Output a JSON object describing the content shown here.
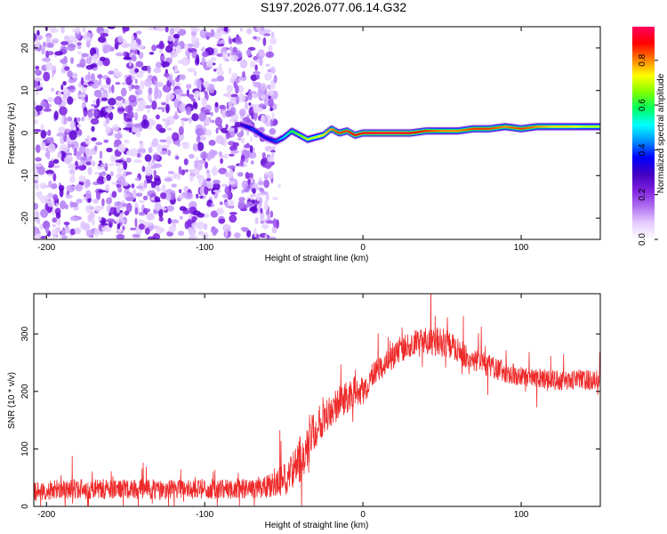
{
  "figure_title": "S197.2026.077.06.14.G32",
  "colors": {
    "snr_line": "#ee2a2a",
    "frame": "#000000",
    "rainbow": [
      "#ffffff",
      "#e6ccff",
      "#b070f0",
      "#8020e0",
      "#4000c0",
      "#0000ff",
      "#0090ff",
      "#00ffff",
      "#00ff60",
      "#80ff00",
      "#ffff00",
      "#ff8000",
      "#ff0000",
      "#ff0060"
    ]
  },
  "chart_data": [
    {
      "type": "heatmap",
      "name": "spectrogram",
      "title": "S197.2026.077.06.14.G32",
      "xlabel": "Height of straight line (km)",
      "ylabel": "Frequency (Hz)",
      "xlim": [
        -208,
        150
      ],
      "ylim": [
        -25,
        25
      ],
      "xticks": [
        -200,
        -100,
        0,
        100
      ],
      "yticks": [
        -20,
        -10,
        0,
        10,
        20
      ],
      "noise_region_x": [
        -208,
        -55
      ],
      "ridge": {
        "description": "narrow high-amplitude ridge tracking the dominant frequency",
        "x": [
          -77,
          -70,
          -62,
          -55,
          -50,
          -45,
          -40,
          -35,
          -30,
          -25,
          -20,
          -15,
          -10,
          -5,
          0,
          10,
          20,
          30,
          40,
          50,
          60,
          70,
          80,
          90,
          100,
          110,
          120,
          130,
          140,
          150
        ],
        "y": [
          2.0,
          1.0,
          -1.0,
          -2.0,
          -1.0,
          0.5,
          -0.5,
          -1.5,
          -1.0,
          -0.5,
          1.0,
          0.0,
          0.5,
          -0.5,
          0.0,
          0.0,
          0.0,
          0.0,
          0.5,
          0.5,
          0.5,
          1.0,
          1.0,
          1.5,
          1.0,
          1.5,
          1.5,
          1.5,
          1.5,
          1.5
        ],
        "amplitude": [
          0.3,
          0.4,
          0.35,
          0.4,
          0.5,
          0.6,
          0.65,
          0.7,
          0.7,
          0.75,
          0.8,
          0.85,
          0.85,
          0.9,
          0.9,
          0.92,
          0.92,
          0.9,
          0.85,
          0.8,
          0.8,
          0.85,
          0.85,
          0.8,
          0.85,
          0.8,
          0.75,
          0.75,
          0.7,
          0.7
        ]
      },
      "colorbar": {
        "label": "Normalized spectral amplitude",
        "range": [
          0.0,
          0.95
        ],
        "ticks": [
          "0.0",
          "0.2",
          "0.4",
          "0.6",
          "0.8"
        ],
        "tick_values": [
          0.0,
          0.2,
          0.4,
          0.6,
          0.8
        ]
      }
    },
    {
      "type": "line",
      "name": "snr",
      "xlabel": "Height of straight line (km)",
      "ylabel": "SNR (10 * v/v)",
      "xlim": [
        -208,
        150
      ],
      "ylim": [
        0,
        370
      ],
      "xticks": [
        -200,
        -100,
        0,
        100
      ],
      "yticks": [
        0,
        100,
        200,
        300
      ],
      "series": [
        {
          "name": "SNR",
          "x": [
            -208,
            -190,
            -170,
            -150,
            -130,
            -110,
            -90,
            -70,
            -60,
            -50,
            -45,
            -40,
            -35,
            -30,
            -25,
            -20,
            -15,
            -10,
            -5,
            0,
            5,
            10,
            15,
            20,
            25,
            30,
            35,
            40,
            45,
            50,
            55,
            60,
            70,
            80,
            90,
            100,
            110,
            120,
            130,
            140,
            150
          ],
          "y": [
            25,
            30,
            30,
            30,
            30,
            30,
            30,
            30,
            35,
            45,
            60,
            80,
            110,
            140,
            160,
            170,
            180,
            190,
            200,
            200,
            220,
            240,
            255,
            265,
            275,
            280,
            285,
            290,
            290,
            285,
            280,
            270,
            255,
            245,
            235,
            225,
            222,
            220,
            218,
            220,
            222
          ],
          "noise_amplitude": [
            20,
            22,
            22,
            22,
            22,
            22,
            22,
            22,
            25,
            35,
            40,
            50,
            55,
            50,
            45,
            40,
            38,
            35,
            35,
            32,
            32,
            30,
            30,
            30,
            30,
            30,
            32,
            32,
            35,
            32,
            30,
            28,
            25,
            25,
            25,
            22,
            22,
            22,
            22,
            22,
            22
          ]
        }
      ]
    }
  ]
}
